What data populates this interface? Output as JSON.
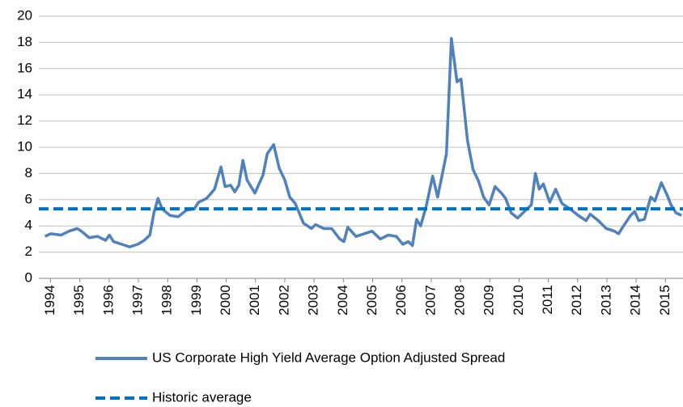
{
  "chart_data": {
    "type": "line",
    "xlim": [
      1993.6,
      2015.6
    ],
    "xticks": [
      1994,
      1995,
      1996,
      1997,
      1998,
      1999,
      2000,
      2001,
      2002,
      2003,
      2004,
      2005,
      2006,
      2007,
      2008,
      2009,
      2010,
      2011,
      2012,
      2013,
      2014,
      2015
    ],
    "ylim": [
      0,
      20
    ],
    "yticks": [
      0,
      2,
      4,
      6,
      8,
      10,
      12,
      14,
      16,
      18,
      20
    ],
    "grid": true,
    "series": [
      {
        "name": "US Corporate High Yield Average Option Adjusted Spread",
        "color": "#4f81bd",
        "linestyle": "solid",
        "x": [
          1993.81,
          1994.0,
          1994.36,
          1994.63,
          1994.91,
          1995.05,
          1995.32,
          1995.6,
          1995.88,
          1996.01,
          1996.15,
          1996.43,
          1996.7,
          1996.98,
          1997.2,
          1997.39,
          1997.53,
          1997.67,
          1997.81,
          1998.08,
          1998.36,
          1998.64,
          1998.91,
          1999.05,
          1999.33,
          1999.6,
          1999.82,
          1999.96,
          2000.15,
          2000.29,
          2000.43,
          2000.57,
          2000.71,
          2000.98,
          2001.26,
          2001.4,
          2001.62,
          2001.81,
          2002.0,
          2002.17,
          2002.36,
          2002.64,
          2002.91,
          2003.05,
          2003.33,
          2003.6,
          2003.88,
          2004.02,
          2004.15,
          2004.43,
          2004.71,
          2004.98,
          2005.26,
          2005.53,
          2005.81,
          2006.03,
          2006.22,
          2006.36,
          2006.5,
          2006.64,
          2006.83,
          2007.05,
          2007.22,
          2007.33,
          2007.52,
          2007.69,
          2007.88,
          2008.02,
          2008.24,
          2008.43,
          2008.62,
          2008.79,
          2008.98,
          2009.18,
          2009.4,
          2009.54,
          2009.73,
          2009.95,
          2010.23,
          2010.42,
          2010.56,
          2010.69,
          2010.83,
          2011.05,
          2011.25,
          2011.47,
          2011.74,
          2012.02,
          2012.29,
          2012.43,
          2012.71,
          2012.98,
          2013.26,
          2013.4,
          2013.54,
          2013.81,
          2013.95,
          2014.09,
          2014.28,
          2014.5,
          2014.64,
          2014.86,
          2015.05,
          2015.19,
          2015.36,
          2015.55
        ],
        "values": [
          3.2,
          3.4,
          3.3,
          3.6,
          3.8,
          3.6,
          3.1,
          3.2,
          2.9,
          3.3,
          2.8,
          2.6,
          2.4,
          2.6,
          2.9,
          3.3,
          5.0,
          6.1,
          5.3,
          4.8,
          4.7,
          5.2,
          5.3,
          5.8,
          6.1,
          6.8,
          8.5,
          7.0,
          7.1,
          6.6,
          7.1,
          9.0,
          7.5,
          6.5,
          7.9,
          9.5,
          10.2,
          8.4,
          7.5,
          6.2,
          5.7,
          4.2,
          3.8,
          4.1,
          3.8,
          3.8,
          3.0,
          2.8,
          3.9,
          3.2,
          3.4,
          3.6,
          3.0,
          3.3,
          3.2,
          2.6,
          2.8,
          2.5,
          4.5,
          4.0,
          5.5,
          7.8,
          6.2,
          7.4,
          9.5,
          18.3,
          15.0,
          15.2,
          10.5,
          8.3,
          7.4,
          6.2,
          5.6,
          7.0,
          6.5,
          6.1,
          5.0,
          4.6,
          5.2,
          5.6,
          8.0,
          6.8,
          7.2,
          5.8,
          6.8,
          5.7,
          5.3,
          4.8,
          4.4,
          4.9,
          4.4,
          3.8,
          3.6,
          3.4,
          3.9,
          4.8,
          5.1,
          4.4,
          4.5,
          6.2,
          5.9,
          7.3,
          6.4,
          5.6,
          5.0,
          4.8
        ]
      },
      {
        "name": "Historic average",
        "color": "#0070c0",
        "linestyle": "dashed",
        "x": [
          1993.6,
          2015.6
        ],
        "values": [
          5.3,
          5.3
        ]
      }
    ]
  }
}
